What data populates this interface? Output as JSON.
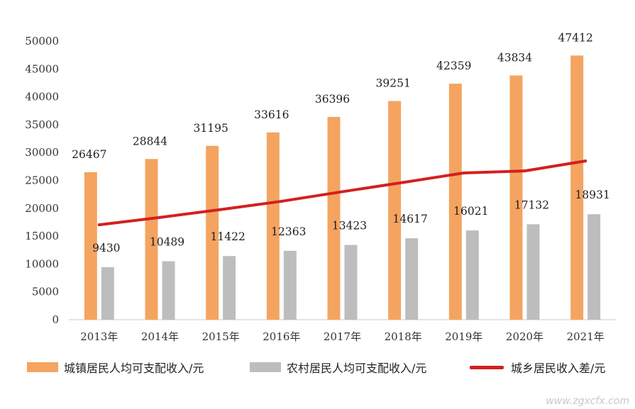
{
  "chart_data": {
    "type": "bar",
    "categories": [
      "2013年",
      "2014年",
      "2015年",
      "2016年",
      "2017年",
      "2018年",
      "2019年",
      "2020年",
      "2021年"
    ],
    "series": [
      {
        "name": "城镇居民人均可支配收入/元",
        "kind": "bar",
        "color": "#f4a460",
        "values": [
          26467,
          28844,
          31195,
          33616,
          36396,
          39251,
          42359,
          43834,
          47412
        ]
      },
      {
        "name": "农村居民人均可支配收入/元",
        "kind": "bar",
        "color": "#bdbdbd",
        "values": [
          9430,
          10489,
          11422,
          12363,
          13423,
          14617,
          16021,
          17132,
          18931
        ]
      },
      {
        "name": "城乡居民收入差/元",
        "kind": "line",
        "color": "#d32020",
        "values": [
          17037,
          18355,
          19773,
          21253,
          22973,
          24634,
          26338,
          26702,
          28481
        ]
      }
    ],
    "yticks": [
      0,
      5000,
      10000,
      15000,
      20000,
      25000,
      30000,
      35000,
      40000,
      45000,
      50000
    ],
    "ylim": [
      0,
      50000
    ],
    "title": "",
    "xlabel": "",
    "ylabel": "",
    "legend": "bottom"
  },
  "watermark": "www.zgxcfx.com"
}
